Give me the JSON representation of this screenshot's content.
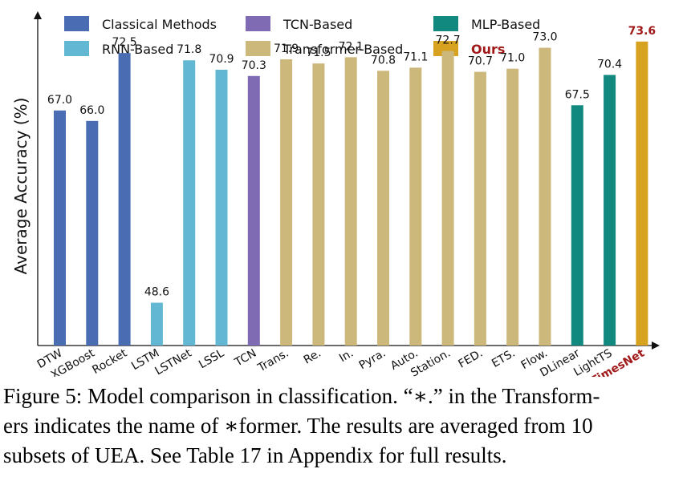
{
  "chart_data": {
    "type": "bar",
    "ylabel": "Average Accuracy (%)",
    "xlabel": "",
    "ylim": [
      44.5,
      76.5
    ],
    "grid": false,
    "legend_position": "top",
    "categories": [
      "DTW",
      "XGBoost",
      "Rocket",
      "LSTM",
      "LSTNet",
      "LSSL",
      "TCN",
      "Trans.",
      "Re.",
      "In.",
      "Pyra.",
      "Auto.",
      "Station.",
      "FED.",
      "ETS.",
      "Flow.",
      "DLinear",
      "LightTS",
      "TimesNet"
    ],
    "values": [
      67.0,
      66.0,
      72.5,
      48.6,
      71.8,
      70.9,
      70.3,
      71.9,
      71.5,
      72.1,
      70.8,
      71.1,
      72.7,
      70.7,
      71.0,
      73.0,
      67.5,
      70.4,
      73.6
    ],
    "value_labels": [
      "67.0",
      "66.0",
      "72.5",
      "48.6",
      "71.8",
      "70.9",
      "70.3",
      "71.9",
      "71.5",
      "72.1",
      "70.8",
      "71.1",
      "72.7",
      "70.7",
      "71.0",
      "73.0",
      "67.5",
      "70.4",
      "73.6"
    ],
    "groups": [
      0,
      0,
      0,
      1,
      1,
      1,
      2,
      3,
      3,
      3,
      3,
      3,
      3,
      3,
      3,
      3,
      4,
      4,
      5
    ],
    "legend": [
      {
        "label": "Classical Methods",
        "color": "#4a6cb3"
      },
      {
        "label": "RNN-Based",
        "color": "#62b7d3"
      },
      {
        "label": "TCN-Based",
        "color": "#7f6ab4"
      },
      {
        "label": "Transformer-Based",
        "color": "#cdb87b"
      },
      {
        "label": "MLP-Based",
        "color": "#12897f"
      },
      {
        "label": "Ours",
        "color": "#d7a21f"
      }
    ],
    "highlight": {
      "index": 18,
      "label_color": "#a11a1a"
    }
  },
  "caption": {
    "line1": "Figure 5: Model comparison in classification. “∗.” in the Transform-",
    "line2": "ers indicates the name of ∗former. The results are averaged from 10",
    "line3": "subsets of UEA. See Table 17 in Appendix for full results."
  }
}
